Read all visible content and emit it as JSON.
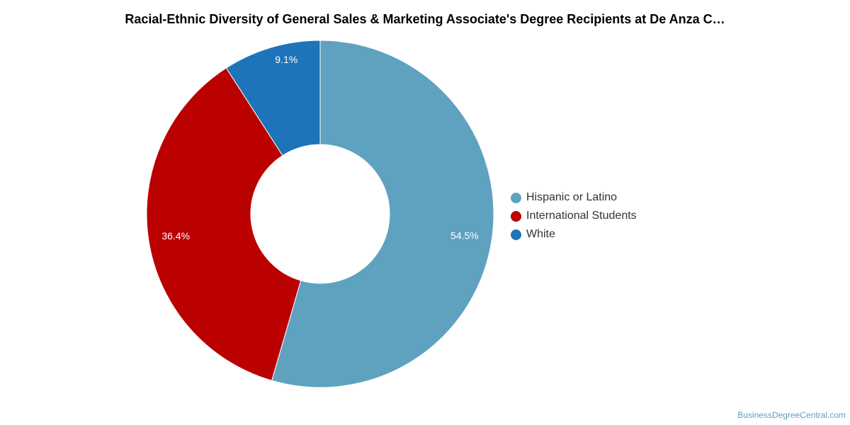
{
  "chart_data": {
    "type": "pie",
    "title": "Racial-Ethnic Diversity of General Sales & Marketing Associate's Degree Recipients at De Anza C…",
    "series": [
      {
        "name": "Hispanic or Latino",
        "value": 54.5,
        "label": "54.5%",
        "color": "#5ea2c0"
      },
      {
        "name": "International Students",
        "value": 36.4,
        "label": "36.4%",
        "color": "#bb0000"
      },
      {
        "name": "White",
        "value": 9.1,
        "label": "9.1%",
        "color": "#1f73b8"
      }
    ],
    "legend_position": "right"
  },
  "footer": {
    "credit": "BusinessDegreeCentral.com"
  }
}
